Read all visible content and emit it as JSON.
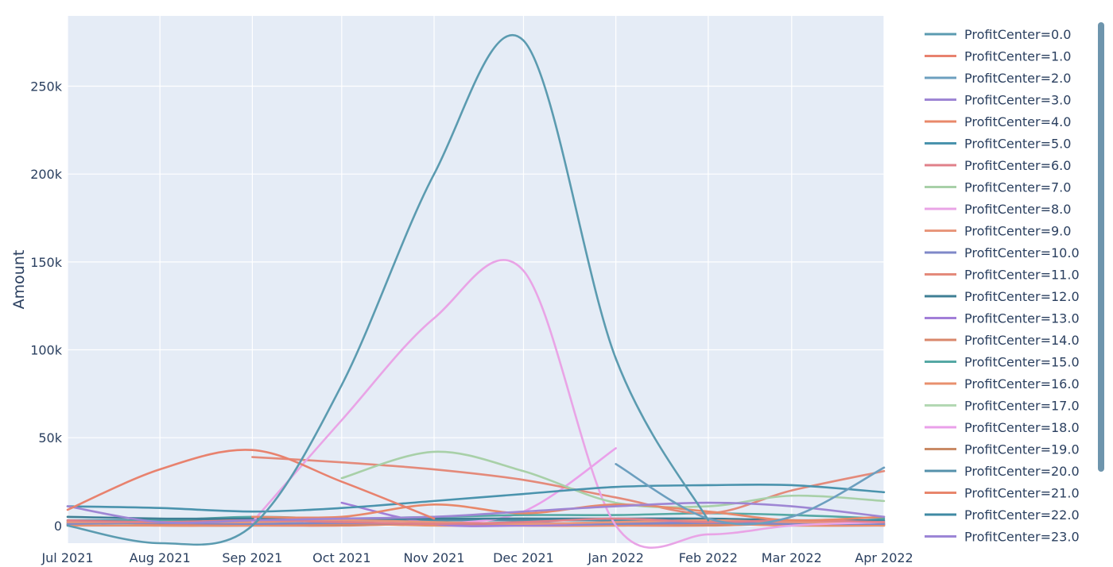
{
  "chart_data": {
    "type": "line",
    "xlabel": "",
    "ylabel": "Amount",
    "x_ticks": [
      "Jul 2021",
      "Aug 2021",
      "Sep 2021",
      "Oct 2021",
      "Nov 2021",
      "Dec 2021",
      "Jan 2022",
      "Feb 2022",
      "Mar 2022",
      "Apr 2022"
    ],
    "y_ticks": [
      "0",
      "50k",
      "100k",
      "150k",
      "200k",
      "250k"
    ],
    "xlim": [
      "2021-07-01",
      "2022-04-01"
    ],
    "ylim": [
      -10000,
      290000
    ],
    "grid": true,
    "legend_position": "right",
    "plot_bg": "#e5ecf6",
    "series": [
      {
        "name": "ProfitCenter=0.0",
        "color": "#5b9bb0",
        "points": [
          [
            "2021-07-01",
            0
          ],
          [
            "2021-08-01",
            -10000
          ],
          [
            "2021-09-01",
            0
          ],
          [
            "2021-10-01",
            80000
          ],
          [
            "2021-11-01",
            200000
          ],
          [
            "2021-12-01",
            276000
          ],
          [
            "2022-01-01",
            95000
          ],
          [
            "2022-02-01",
            3000
          ]
        ]
      },
      {
        "name": "ProfitCenter=1.0",
        "color": "#e8826e",
        "points": [
          [
            "2021-07-01",
            9000
          ],
          [
            "2021-08-01",
            32000
          ],
          [
            "2021-09-01",
            43000
          ],
          [
            "2021-10-01",
            25000
          ],
          [
            "2021-11-01",
            4000
          ]
        ]
      },
      {
        "name": "ProfitCenter=2.0",
        "color": "#6c9fbf",
        "points": [
          [
            "2022-01-01",
            35000
          ],
          [
            "2022-02-01",
            4000
          ],
          [
            "2022-03-01",
            5000
          ],
          [
            "2022-04-01",
            33000
          ]
        ]
      },
      {
        "name": "ProfitCenter=3.0",
        "color": "#9e86d4",
        "points": [
          [
            "2021-07-01",
            11000
          ],
          [
            "2021-08-01",
            2000
          ],
          [
            "2021-09-01",
            3000
          ],
          [
            "2021-10-01",
            4000
          ],
          [
            "2021-11-01",
            5000
          ],
          [
            "2021-12-01",
            8000
          ],
          [
            "2022-01-01",
            11000
          ],
          [
            "2022-02-01",
            13000
          ],
          [
            "2022-03-01",
            11000
          ],
          [
            "2022-04-01",
            5000
          ]
        ]
      },
      {
        "name": "ProfitCenter=4.0",
        "color": "#e8886a",
        "points": [
          [
            "2021-09-01",
            5000
          ],
          [
            "2021-10-01",
            5000
          ],
          [
            "2021-11-01",
            12000
          ],
          [
            "2021-12-01",
            7000
          ],
          [
            "2022-01-01",
            12000
          ],
          [
            "2022-02-01",
            8000
          ],
          [
            "2022-03-01",
            3000
          ],
          [
            "2022-04-01",
            5000
          ]
        ]
      },
      {
        "name": "ProfitCenter=5.0",
        "color": "#4a93ad",
        "points": [
          [
            "2021-07-01",
            11000
          ],
          [
            "2021-08-01",
            10000
          ],
          [
            "2021-09-01",
            8000
          ],
          [
            "2021-10-01",
            10000
          ],
          [
            "2021-11-01",
            14000
          ],
          [
            "2021-12-01",
            18000
          ],
          [
            "2022-01-01",
            22000
          ],
          [
            "2022-02-01",
            23000
          ],
          [
            "2022-03-01",
            23000
          ],
          [
            "2022-04-01",
            19000
          ]
        ]
      },
      {
        "name": "ProfitCenter=6.0",
        "color": "#e0808a",
        "points": [
          [
            "2021-07-01",
            3000
          ],
          [
            "2021-08-01",
            2000
          ],
          [
            "2021-09-01",
            3000
          ],
          [
            "2021-10-01",
            2000
          ],
          [
            "2021-11-01",
            1000
          ],
          [
            "2021-12-01",
            2000
          ],
          [
            "2022-01-01",
            4000
          ],
          [
            "2022-02-01",
            2000
          ],
          [
            "2022-03-01",
            3000
          ],
          [
            "2022-04-01",
            2000
          ]
        ]
      },
      {
        "name": "ProfitCenter=7.0",
        "color": "#a8d0a8",
        "points": [
          [
            "2021-10-01",
            27000
          ],
          [
            "2021-11-01",
            42000
          ],
          [
            "2021-12-01",
            31000
          ],
          [
            "2022-01-01",
            13000
          ],
          [
            "2022-02-01",
            11000
          ],
          [
            "2022-03-01",
            17000
          ],
          [
            "2022-04-01",
            14000
          ]
        ]
      },
      {
        "name": "ProfitCenter=8.0",
        "color": "#e9a4e6",
        "points": [
          [
            "2021-09-01",
            2000
          ],
          [
            "2021-10-01",
            60000
          ],
          [
            "2021-11-01",
            118000
          ],
          [
            "2021-12-01",
            145000
          ],
          [
            "2022-01-01",
            0
          ],
          [
            "2022-02-01",
            -5000
          ],
          [
            "2022-03-01",
            0
          ],
          [
            "2022-04-01",
            2000
          ]
        ]
      },
      {
        "name": "ProfitCenter=9.0",
        "color": "#e8977c",
        "points": [
          [
            "2021-07-01",
            2000
          ],
          [
            "2021-08-01",
            2000
          ],
          [
            "2021-09-01",
            2000
          ],
          [
            "2021-10-01",
            3000
          ],
          [
            "2021-11-01",
            2000
          ],
          [
            "2021-12-01",
            1000
          ],
          [
            "2022-01-01",
            2000
          ],
          [
            "2022-02-01",
            3000
          ],
          [
            "2022-03-01",
            2000
          ],
          [
            "2022-04-01",
            2000
          ]
        ]
      },
      {
        "name": "ProfitCenter=10.0",
        "color": "#7f88c8",
        "points": [
          [
            "2021-07-01",
            1000
          ],
          [
            "2021-08-01",
            1500
          ],
          [
            "2021-09-01",
            1000
          ],
          [
            "2021-10-01",
            1500
          ],
          [
            "2021-11-01",
            1000
          ],
          [
            "2021-12-01",
            1500
          ],
          [
            "2022-01-01",
            1000
          ],
          [
            "2022-02-01",
            1500
          ],
          [
            "2022-03-01",
            1000
          ],
          [
            "2022-04-01",
            1000
          ]
        ]
      },
      {
        "name": "ProfitCenter=11.0",
        "color": "#e48a7a",
        "points": [
          [
            "2021-09-01",
            39000
          ],
          [
            "2021-10-01",
            36000
          ],
          [
            "2021-11-01",
            32000
          ],
          [
            "2021-12-01",
            26000
          ],
          [
            "2022-01-01",
            16000
          ],
          [
            "2022-02-01",
            7000
          ],
          [
            "2022-03-01",
            20000
          ],
          [
            "2022-04-01",
            31000
          ]
        ]
      },
      {
        "name": "ProfitCenter=12.0",
        "color": "#3f7f95",
        "points": [
          [
            "2021-07-01",
            5000
          ],
          [
            "2021-08-01",
            4000
          ],
          [
            "2021-09-01",
            4000
          ],
          [
            "2021-10-01",
            4000
          ],
          [
            "2021-11-01",
            4000
          ],
          [
            "2021-12-01",
            4000
          ],
          [
            "2022-01-01",
            4000
          ],
          [
            "2022-02-01",
            4000
          ],
          [
            "2022-03-01",
            3000
          ],
          [
            "2022-04-01",
            2000
          ]
        ]
      },
      {
        "name": "ProfitCenter=13.0",
        "color": "#a27ed8",
        "points": [
          [
            "2021-10-01",
            13000
          ],
          [
            "2021-11-01",
            1000
          ],
          [
            "2021-12-01",
            0
          ],
          [
            "2022-01-01",
            1000
          ],
          [
            "2022-02-01",
            2000
          ],
          [
            "2022-03-01",
            1000
          ],
          [
            "2022-04-01",
            1000
          ]
        ]
      },
      {
        "name": "ProfitCenter=14.0",
        "color": "#d9876b",
        "points": [
          [
            "2021-07-01",
            2000
          ],
          [
            "2021-08-01",
            1000
          ],
          [
            "2021-09-01",
            1000
          ],
          [
            "2021-10-01",
            1000
          ],
          [
            "2021-11-01",
            1000
          ],
          [
            "2021-12-01",
            1000
          ],
          [
            "2022-01-01",
            1000
          ],
          [
            "2022-02-01",
            1000
          ],
          [
            "2022-03-01",
            1000
          ],
          [
            "2022-04-01",
            1000
          ]
        ]
      },
      {
        "name": "ProfitCenter=15.0",
        "color": "#55a8a4",
        "points": [
          [
            "2021-07-01",
            2000
          ],
          [
            "2021-08-01",
            3000
          ],
          [
            "2021-09-01",
            5000
          ],
          [
            "2021-10-01",
            4000
          ],
          [
            "2021-11-01",
            5000
          ],
          [
            "2021-12-01",
            6000
          ],
          [
            "2022-01-01",
            6000
          ],
          [
            "2022-02-01",
            7000
          ],
          [
            "2022-03-01",
            6000
          ],
          [
            "2022-04-01",
            4000
          ]
        ]
      },
      {
        "name": "ProfitCenter=16.0",
        "color": "#e8906e",
        "points": [
          [
            "2021-07-01",
            0
          ],
          [
            "2021-08-01",
            0
          ],
          [
            "2021-09-01",
            0
          ],
          [
            "2021-10-01",
            1000
          ],
          [
            "2021-11-01",
            0
          ],
          [
            "2021-12-01",
            0
          ],
          [
            "2022-01-01",
            0
          ],
          [
            "2022-02-01",
            1000
          ],
          [
            "2022-03-01",
            0
          ],
          [
            "2022-04-01",
            0
          ]
        ]
      },
      {
        "name": "ProfitCenter=17.0",
        "color": "#b3d8b3",
        "points": [
          [
            "2021-07-01",
            1000
          ],
          [
            "2021-08-01",
            1000
          ],
          [
            "2021-09-01",
            1500
          ],
          [
            "2021-10-01",
            1000
          ],
          [
            "2021-11-01",
            1000
          ],
          [
            "2021-12-01",
            1500
          ],
          [
            "2022-01-01",
            1000
          ],
          [
            "2022-02-01",
            1000
          ],
          [
            "2022-03-01",
            1500
          ],
          [
            "2022-04-01",
            1000
          ]
        ]
      },
      {
        "name": "ProfitCenter=18.0",
        "color": "#eaa0ea",
        "points": [
          [
            "2021-11-01",
            1000
          ],
          [
            "2021-12-01",
            8000
          ],
          [
            "2022-01-01",
            44000
          ]
        ]
      },
      {
        "name": "ProfitCenter=19.0",
        "color": "#c98a66",
        "points": [
          [
            "2021-07-01",
            500
          ],
          [
            "2021-08-01",
            500
          ],
          [
            "2021-09-01",
            500
          ],
          [
            "2021-10-01",
            500
          ],
          [
            "2021-11-01",
            500
          ],
          [
            "2021-12-01",
            500
          ],
          [
            "2022-01-01",
            500
          ],
          [
            "2022-02-01",
            500
          ],
          [
            "2022-03-01",
            500
          ],
          [
            "2022-04-01",
            500
          ]
        ]
      },
      {
        "name": "ProfitCenter=20.0",
        "color": "#5591ab",
        "points": [
          [
            "2021-07-01",
            2000
          ],
          [
            "2021-08-01",
            2000
          ],
          [
            "2021-09-01",
            2000
          ],
          [
            "2021-10-01",
            3000
          ],
          [
            "2021-11-01",
            3000
          ],
          [
            "2021-12-01",
            3000
          ],
          [
            "2022-01-01",
            3000
          ],
          [
            "2022-02-01",
            3000
          ],
          [
            "2022-03-01",
            2000
          ],
          [
            "2022-04-01",
            2000
          ]
        ]
      },
      {
        "name": "ProfitCenter=21.0",
        "color": "#e8866c",
        "points": [
          [
            "2021-07-01",
            1000
          ],
          [
            "2021-08-01",
            0
          ],
          [
            "2021-09-01",
            0
          ],
          [
            "2021-10-01",
            0
          ],
          [
            "2021-11-01",
            1000
          ],
          [
            "2021-12-01",
            0
          ],
          [
            "2022-01-01",
            0
          ],
          [
            "2022-02-01",
            0
          ],
          [
            "2022-03-01",
            1000
          ],
          [
            "2022-04-01",
            0
          ]
        ]
      },
      {
        "name": "ProfitCenter=22.0",
        "color": "#3f8aa3",
        "points": [
          [
            "2021-07-01",
            3000
          ],
          [
            "2021-08-01",
            3000
          ],
          [
            "2021-09-01",
            4000
          ],
          [
            "2021-10-01",
            3000
          ],
          [
            "2021-11-01",
            3000
          ],
          [
            "2021-12-01",
            4000
          ],
          [
            "2022-01-01",
            3000
          ],
          [
            "2022-02-01",
            3000
          ],
          [
            "2022-03-01",
            3000
          ],
          [
            "2022-04-01",
            3000
          ]
        ]
      },
      {
        "name": "ProfitCenter=23.0",
        "color": "#9c86d6",
        "points": [
          [
            "2021-07-01",
            500
          ],
          [
            "2021-08-01",
            1000
          ],
          [
            "2021-09-01",
            500
          ],
          [
            "2021-10-01",
            1000
          ],
          [
            "2021-11-01",
            500
          ],
          [
            "2021-12-01",
            1000
          ],
          [
            "2022-01-01",
            500
          ],
          [
            "2022-02-01",
            1000
          ],
          [
            "2022-03-01",
            500
          ],
          [
            "2022-04-01",
            500
          ]
        ]
      }
    ]
  }
}
